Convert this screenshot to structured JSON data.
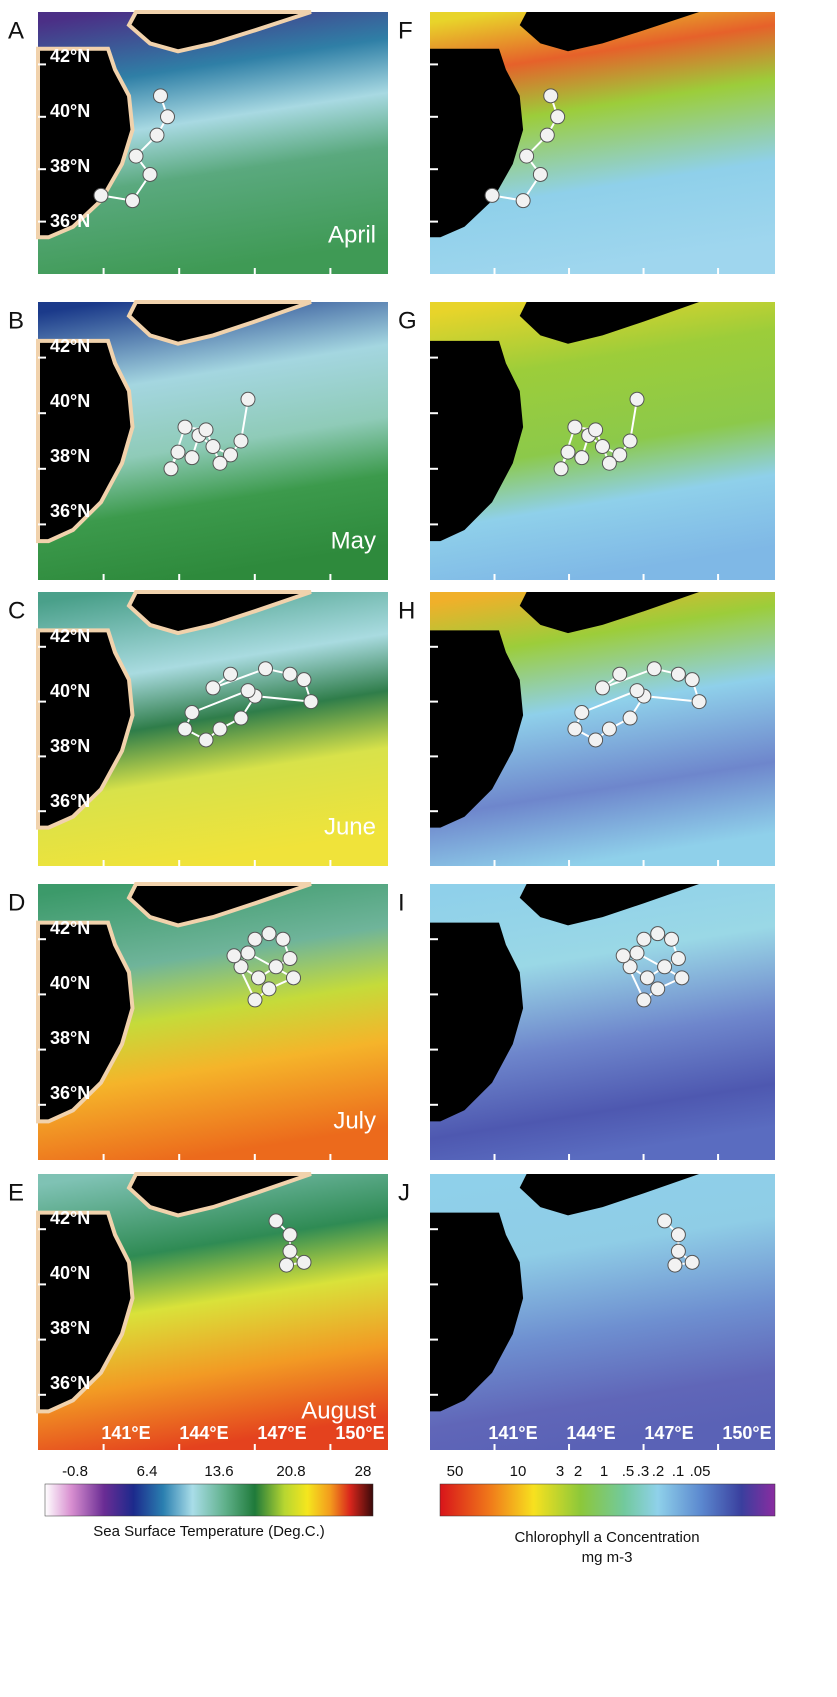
{
  "figure": {
    "sst_panels": [
      {
        "letter": "A",
        "month": "April"
      },
      {
        "letter": "B",
        "month": "May"
      },
      {
        "letter": "C",
        "month": "June"
      },
      {
        "letter": "D",
        "month": "July"
      },
      {
        "letter": "E",
        "month": "August"
      }
    ],
    "chl_panels": [
      {
        "letter": "F"
      },
      {
        "letter": "G"
      },
      {
        "letter": "H"
      },
      {
        "letter": "I"
      },
      {
        "letter": "J"
      }
    ],
    "lat_labels": [
      "42°N",
      "40°N",
      "38°N",
      "36°N"
    ],
    "lon_labels": [
      "141°E",
      "144°E",
      "147°E",
      "150°E"
    ],
    "sst_colorbar": {
      "ticks": [
        "-0.8",
        "6.4",
        "13.6",
        "20.8",
        "28"
      ],
      "title": "Sea Surface Temperature (Deg.C.)"
    },
    "chl_colorbar": {
      "ticks": [
        "50",
        "10",
        "3",
        "2",
        "1",
        ".5",
        ".3",
        ".2",
        ".1",
        ".05"
      ],
      "title": "Chlorophyll a Concentration",
      "unit": "mg m-3"
    }
  }
}
